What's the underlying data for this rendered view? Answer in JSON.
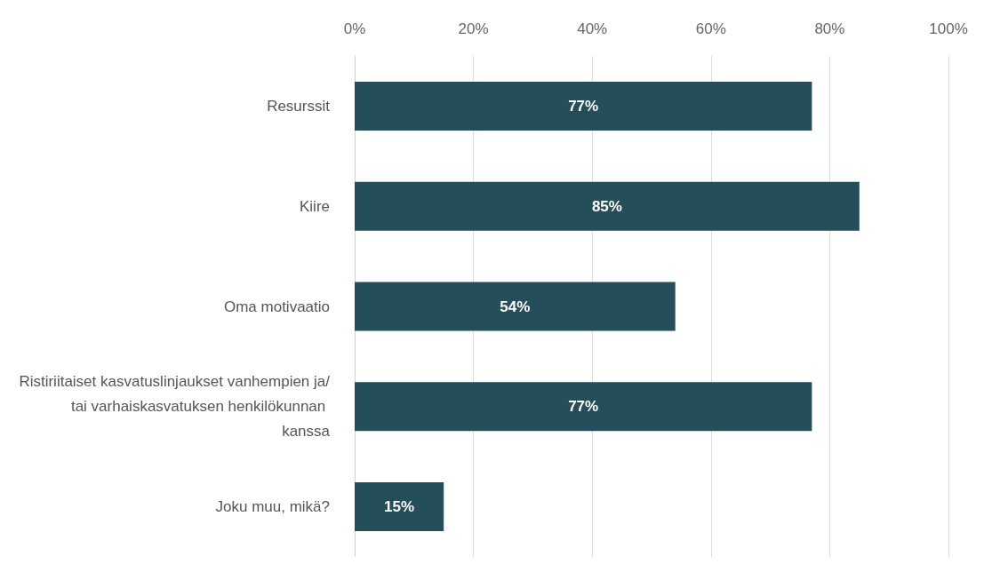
{
  "chart_data": {
    "type": "bar",
    "orientation": "horizontal",
    "categories": [
      "Resurssit",
      "Kiire",
      "Oma motivaatio",
      "Ristiriitaiset kasvatuslinjaukset vanhempien ja/tai varhaiskasvatuksen henkilökunnan kanssa",
      "Joku muu, mikä?"
    ],
    "values": [
      77,
      85,
      54,
      77,
      15
    ],
    "value_labels": [
      "77%",
      "85%",
      "54%",
      "77%",
      "15%"
    ],
    "color": "#234e5a",
    "xlim": [
      0,
      100
    ],
    "xticks": [
      {
        "value": 0,
        "label": "0%"
      },
      {
        "value": 20,
        "label": "20%"
      },
      {
        "value": 40,
        "label": "40%"
      },
      {
        "value": 60,
        "label": "60%"
      },
      {
        "value": 80,
        "label": "80%"
      },
      {
        "value": 100,
        "label": "100%"
      }
    ],
    "grid": "x"
  }
}
